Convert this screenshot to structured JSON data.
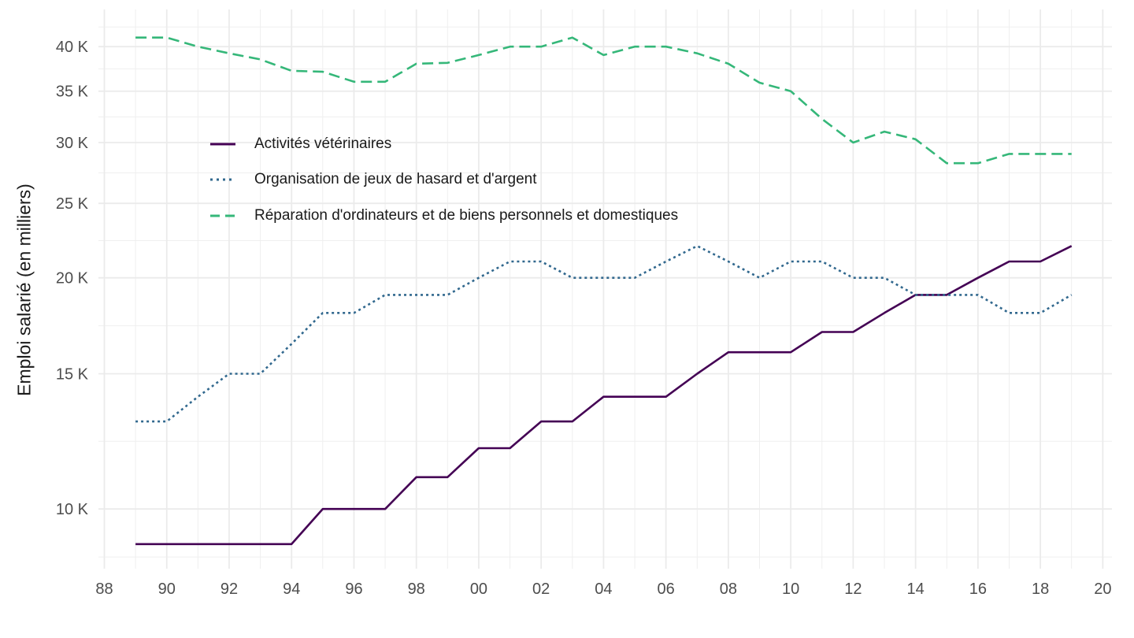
{
  "chart_data": {
    "type": "line",
    "title": "",
    "xlabel": "",
    "ylabel": "Emploi salarié (en milliers)",
    "yscale": "log",
    "units": "milliers (K)",
    "grid": "major and minor, light gray, no axis lines",
    "legend_position": "inside upper-left",
    "x": [
      1989,
      1990,
      1991,
      1992,
      1993,
      1994,
      1995,
      1996,
      1997,
      1998,
      1999,
      2000,
      2001,
      2002,
      2003,
      2004,
      2005,
      2006,
      2007,
      2008,
      2009,
      2010,
      2011,
      2012,
      2013,
      2014,
      2015,
      2016,
      2017,
      2018,
      2019
    ],
    "x_tick_years": [
      1988,
      1990,
      1992,
      1994,
      1996,
      1998,
      2000,
      2002,
      2004,
      2006,
      2008,
      2010,
      2012,
      2014,
      2016,
      2018,
      2020
    ],
    "x_tick_labels": [
      "88",
      "90",
      "92",
      "94",
      "96",
      "98",
      "00",
      "02",
      "04",
      "06",
      "08",
      "10",
      "12",
      "14",
      "16",
      "18",
      "20"
    ],
    "y_ticks": [
      10,
      15,
      20,
      25,
      30,
      35,
      40
    ],
    "y_tick_labels": [
      "10 K",
      "15 K",
      "20 K",
      "25 K",
      "30 K",
      "35 K",
      "40 K"
    ],
    "y_minor_gridlines": [
      8.66,
      12.25,
      17.32,
      22.36,
      27.39,
      32.4,
      37.42,
      42.43
    ],
    "ylim": [
      8.4,
      44.7
    ],
    "series": [
      {
        "name": "Activités vétérinaires",
        "color": "#440154",
        "linestyle": "solid",
        "values": [
          9,
          9,
          9,
          9,
          9,
          9,
          10,
          10,
          10,
          11,
          11,
          12,
          12,
          13,
          13,
          14,
          14,
          14,
          15,
          16,
          16,
          16,
          17,
          17,
          18,
          19,
          19,
          20,
          21,
          21,
          22
        ]
      },
      {
        "name": "Organisation de jeux de hasard et d'argent",
        "color": "#31688e",
        "linestyle": "dotted",
        "values": [
          13,
          13,
          14,
          15,
          15,
          16.4,
          18,
          18,
          19,
          19,
          19,
          20,
          21,
          21,
          20,
          20,
          20,
          21,
          22,
          21,
          20,
          21,
          21,
          20,
          20,
          19,
          19,
          19,
          18,
          18,
          19
        ]
      },
      {
        "name": "Réparation d'ordinateurs et de biens personnels et domestiques",
        "color": "#35b779",
        "linestyle": "dashed",
        "values": [
          41.1,
          41.1,
          40,
          39.2,
          38.5,
          37.2,
          37.1,
          36,
          36,
          38,
          38.1,
          39,
          40,
          40,
          41.1,
          39,
          40,
          40,
          39.2,
          38,
          35.9,
          35,
          32.2,
          30,
          31,
          30.3,
          28.2,
          28.2,
          29,
          29,
          29
        ]
      }
    ]
  },
  "style": {
    "tick_label_color": "#4d4d4d",
    "grid_major_color": "#ebebeb",
    "grid_minor_color": "#efefef",
    "background": "#ffffff"
  }
}
